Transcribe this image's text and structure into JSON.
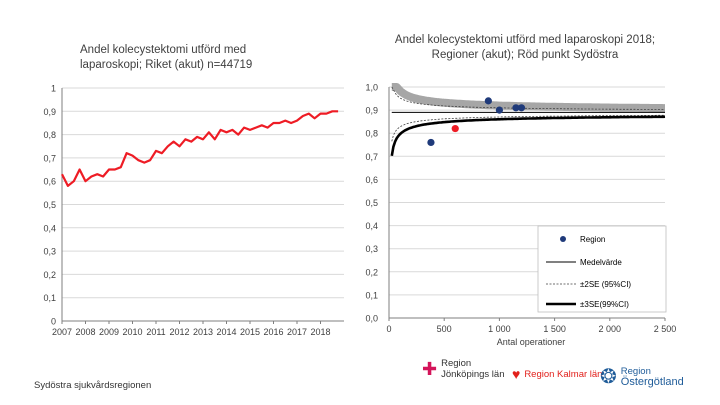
{
  "chart_data": [
    {
      "type": "line",
      "title": "Andel kolecystektomi utförd med laparoskopi; Riket (akut) n=44719",
      "x_tick_labels": [
        "2007",
        "2008",
        "2009",
        "2010",
        "2011",
        "2012",
        "2013",
        "2014",
        "2015",
        "2016",
        "2017",
        "2018"
      ],
      "y_tick_labels": [
        "0",
        "0,1",
        "0,2",
        "0,3",
        "0,4",
        "0,5",
        "0,6",
        "0,7",
        "0,8",
        "0,9",
        "1"
      ],
      "ylim": [
        0,
        1
      ],
      "xlim": [
        2007,
        2019
      ],
      "series": [
        {
          "name": "Riket (akut)",
          "color": "#ee1c25",
          "x": [
            2007,
            2007.25,
            2007.5,
            2007.75,
            2008,
            2008.25,
            2008.5,
            2008.75,
            2009,
            2009.25,
            2009.5,
            2009.75,
            2010,
            2010.25,
            2010.5,
            2010.75,
            2011,
            2011.25,
            2011.5,
            2011.75,
            2012,
            2012.25,
            2012.5,
            2012.75,
            2013,
            2013.25,
            2013.5,
            2013.75,
            2014,
            2014.25,
            2014.5,
            2014.75,
            2015,
            2015.25,
            2015.5,
            2015.75,
            2016,
            2016.25,
            2016.5,
            2016.75,
            2017,
            2017.25,
            2017.5,
            2017.75,
            2018,
            2018.25,
            2018.5,
            2018.75
          ],
          "values": [
            0.63,
            0.58,
            0.6,
            0.65,
            0.6,
            0.62,
            0.63,
            0.62,
            0.65,
            0.65,
            0.66,
            0.72,
            0.71,
            0.69,
            0.68,
            0.69,
            0.73,
            0.72,
            0.75,
            0.77,
            0.75,
            0.78,
            0.77,
            0.79,
            0.78,
            0.81,
            0.78,
            0.82,
            0.81,
            0.82,
            0.8,
            0.83,
            0.82,
            0.83,
            0.84,
            0.83,
            0.85,
            0.85,
            0.86,
            0.85,
            0.86,
            0.88,
            0.89,
            0.87,
            0.89,
            0.89,
            0.9,
            0.9
          ]
        }
      ]
    },
    {
      "type": "scatter",
      "title": "Andel kolecystektomi utförd med laparoskopi 2018; Regioner (akut); Röd punkt Sydöstra",
      "xlabel": "Antal operationer",
      "xlim": [
        0,
        2500
      ],
      "ylim": [
        0,
        1
      ],
      "x_tick_labels": [
        "0",
        "500",
        "1 000",
        "1 500",
        "2 000",
        "2 500"
      ],
      "y_tick_labels": [
        "0,0",
        "0,1",
        "0,2",
        "0,3",
        "0,4",
        "0,5",
        "0,6",
        "0,7",
        "0,8",
        "0,9",
        "1,0"
      ],
      "mean": 0.89,
      "points": [
        {
          "x": 380,
          "y": 0.76,
          "color": "#1f3a7a"
        },
        {
          "x": 600,
          "y": 0.82,
          "color": "#ee1c25"
        },
        {
          "x": 900,
          "y": 0.94,
          "color": "#1f3a7a"
        },
        {
          "x": 1000,
          "y": 0.9,
          "color": "#1f3a7a"
        },
        {
          "x": 1150,
          "y": 0.91,
          "color": "#1f3a7a"
        },
        {
          "x": 1200,
          "y": 0.91,
          "color": "#1f3a7a"
        }
      ],
      "legend": {
        "position": "bottom-right",
        "entries": [
          "Region",
          "Medelvärde",
          "±2SE (95%CI)",
          "±3SE(99%CI)"
        ]
      }
    }
  ],
  "footer": "Sydöstra sjukvårdsregionen",
  "logos": {
    "jonkoping_line1": "Region",
    "jonkoping_line2": "Jönköpings län",
    "kalmar": "Region Kalmar län",
    "ostergotland_line1": "Region",
    "ostergotland_line2": "Östergötland"
  }
}
